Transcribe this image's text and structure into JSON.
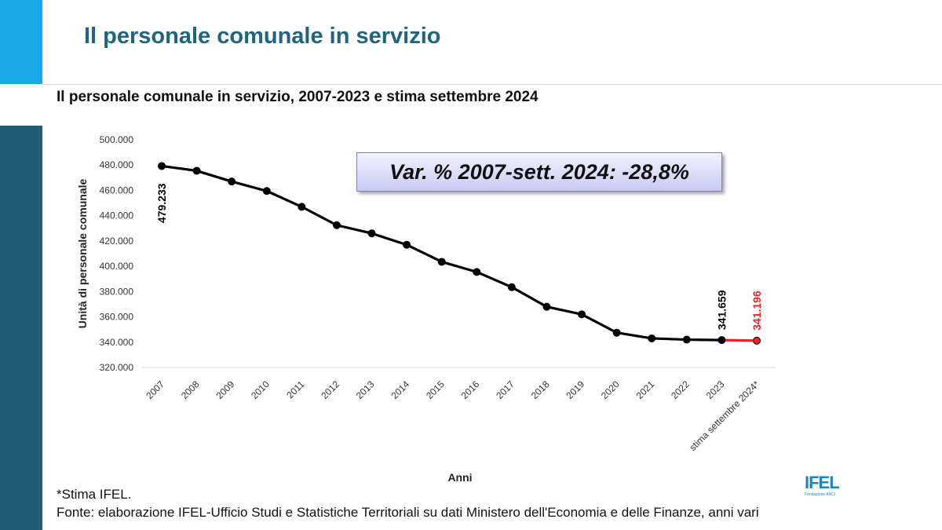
{
  "slide": {
    "title": "Il personale comunale in servizio",
    "chart_title": "Il personale comunale in servizio, 2007-2023 e stima settembre 2024",
    "callout": "Var. % 2007-sett. 2024: -28,8%",
    "note": "*Stima IFEL.",
    "source": "Fonte: elaborazione IFEL-Ufficio Studi e Statistiche Territoriali su dati Ministero dell'Economia e delle Finanze, anni vari",
    "logo_text": "IFEL",
    "logo_subtext": "Fondazione ANCI"
  },
  "colors": {
    "title": "#1f6480",
    "accent_light": "#1aa8e8",
    "accent_dark": "#215d79",
    "series": "#000000",
    "estimate": "#e3262b",
    "callout_border": "#7b7fc0"
  },
  "chart_data": {
    "type": "line",
    "title": "Il personale comunale in servizio, 2007-2023 e stima settembre 2024",
    "xlabel": "Anni",
    "ylabel": "Unità di personale comunale",
    "ylim": [
      320000,
      500000
    ],
    "yticks": [
      320000,
      340000,
      360000,
      380000,
      400000,
      420000,
      440000,
      460000,
      480000,
      500000
    ],
    "ytick_labels": [
      "320.000",
      "340.000",
      "360.000",
      "380.000",
      "400.000",
      "420.000",
      "440.000",
      "460.000",
      "480.000",
      "500.000"
    ],
    "grid": false,
    "categories": [
      "2007",
      "2008",
      "2009",
      "2010",
      "2011",
      "2012",
      "2013",
      "2014",
      "2015",
      "2016",
      "2017",
      "2018",
      "2019",
      "2020",
      "2021",
      "2022",
      "2023",
      "stima settembre 2024*"
    ],
    "values": [
      479233,
      475500,
      467000,
      459500,
      447000,
      432500,
      426000,
      417000,
      403500,
      395500,
      383500,
      368000,
      362000,
      347500,
      343000,
      342000,
      341659,
      341196
    ],
    "estimate_from_index": 16,
    "data_labels": [
      {
        "index": 0,
        "text": "479.233",
        "color": "#000000"
      },
      {
        "index": 16,
        "text": "341.659",
        "color": "#000000"
      },
      {
        "index": 17,
        "text": "341.196",
        "color": "#e3262b"
      }
    ]
  }
}
